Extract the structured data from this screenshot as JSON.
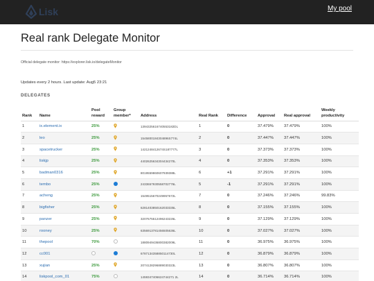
{
  "navbar": {
    "logo_text": "Lisk",
    "my_pool": "My pool"
  },
  "page_title": "Real rank Delegate Monitor",
  "official_monitor": "Official delegate monitor: https://explorer.lisk.io/delegateMonitor",
  "updates": "Updates every 2 hours. Last update: Aug5 23:21",
  "section_title": "DELEGATES",
  "colors": {
    "navbar": "#222222",
    "link": "#2a6cb0",
    "reward": "#3e9a3e",
    "member_dot": "#1c7cd6",
    "member_pin": "#e0a72b"
  },
  "table": {
    "headers": [
      "Rank",
      "Name",
      "Pool reward",
      "Group member*",
      "Address",
      "Real Rank",
      "Difference",
      "Approval",
      "Real approval",
      "Weekly productivity"
    ],
    "rows": [
      {
        "rank": "1",
        "name": "ix.element.ix",
        "reward": "25%",
        "member": "pin",
        "address": "1394325616740553182DL",
        "real_rank": "1",
        "diff": "0",
        "approval": "37.479%",
        "real_approval": "37.479%",
        "productivity": "100%"
      },
      {
        "rank": "2",
        "name": "leo",
        "reward": "25%",
        "member": "pin",
        "address": "1545800184304896S774L",
        "real_rank": "2",
        "diff": "0",
        "approval": "37.447%",
        "real_approval": "37.447%",
        "productivity": "100%"
      },
      {
        "rank": "3",
        "name": "spacetrucker",
        "reward": "25%",
        "member": "pin",
        "address": "1421248412674S187777L",
        "real_rank": "3",
        "diff": "0",
        "approval": "37.373%",
        "real_approval": "37.373%",
        "productivity": "100%"
      },
      {
        "rank": "4",
        "name": "liskjp",
        "reward": "25%",
        "member": "pin",
        "address": "4402625634304434270L",
        "real_rank": "4",
        "diff": "0",
        "approval": "37.353%",
        "real_approval": "37.353%",
        "productivity": "100%"
      },
      {
        "rank": "5",
        "name": "badman0316",
        "reward": "25%",
        "member": "pin",
        "address": "8019559860607939388L",
        "real_rank": "6",
        "diff": "+1",
        "approval": "37.291%",
        "real_approval": "37.291%",
        "productivity": "100%"
      },
      {
        "rank": "6",
        "name": "tembo",
        "reward": "25%",
        "member": "dot",
        "address": "2433657930558702776L",
        "real_rank": "5",
        "diff": "-1",
        "approval": "37.291%",
        "real_approval": "37.291%",
        "productivity": "100%"
      },
      {
        "rank": "7",
        "name": "acheng",
        "reward": "25%",
        "member": "pin",
        "address": "1549515670249957672L",
        "real_rank": "7",
        "diff": "0",
        "approval": "37.246%",
        "real_approval": "37.246%",
        "productivity": "99.83%"
      },
      {
        "rank": "8",
        "name": "bigfisher",
        "reward": "25%",
        "member": "pin",
        "address": "6281403850162033335L",
        "real_rank": "8",
        "diff": "0",
        "approval": "37.155%",
        "real_approval": "37.155%",
        "productivity": "100%"
      },
      {
        "rank": "9",
        "name": "panzer",
        "reward": "25%",
        "member": "pin",
        "address": "3207675512496243226L",
        "real_rank": "9",
        "diff": "0",
        "approval": "37.129%",
        "real_approval": "37.129%",
        "productivity": "100%"
      },
      {
        "rank": "10",
        "name": "rooney",
        "reward": "25%",
        "member": "pin",
        "address": "6356913781456505636L",
        "real_rank": "10",
        "diff": "0",
        "approval": "37.027%",
        "real_approval": "37.027%",
        "productivity": "100%"
      },
      {
        "rank": "11",
        "name": "thepool",
        "reward": "70%",
        "member": "empty",
        "address": "1880949436800382009L",
        "real_rank": "11",
        "diff": "0",
        "approval": "36.975%",
        "real_approval": "36.975%",
        "productivity": "100%"
      },
      {
        "rank": "12",
        "name": "cc001",
        "reward": "",
        "member": "dot",
        "address": "6787134358850114730L",
        "real_rank": "12",
        "diff": "0",
        "approval": "36.879%",
        "real_approval": "36.879%",
        "productivity": "100%"
      },
      {
        "rank": "13",
        "name": "xujian",
        "reward": "25%",
        "member": "pin",
        "address": "2074128296889030323L",
        "real_rank": "13",
        "diff": "0",
        "approval": "36.807%",
        "real_approval": "36.807%",
        "productivity": "100%"
      },
      {
        "rank": "14",
        "name": "liskpool_com_01",
        "reward": "75%",
        "member": "empty",
        "address": "1459347406624744271 2L",
        "real_rank": "14",
        "diff": "0",
        "approval": "36.714%",
        "real_approval": "36.714%",
        "productivity": "100%"
      }
    ]
  },
  "row12_reward_icon": "empty-circle-icon"
}
